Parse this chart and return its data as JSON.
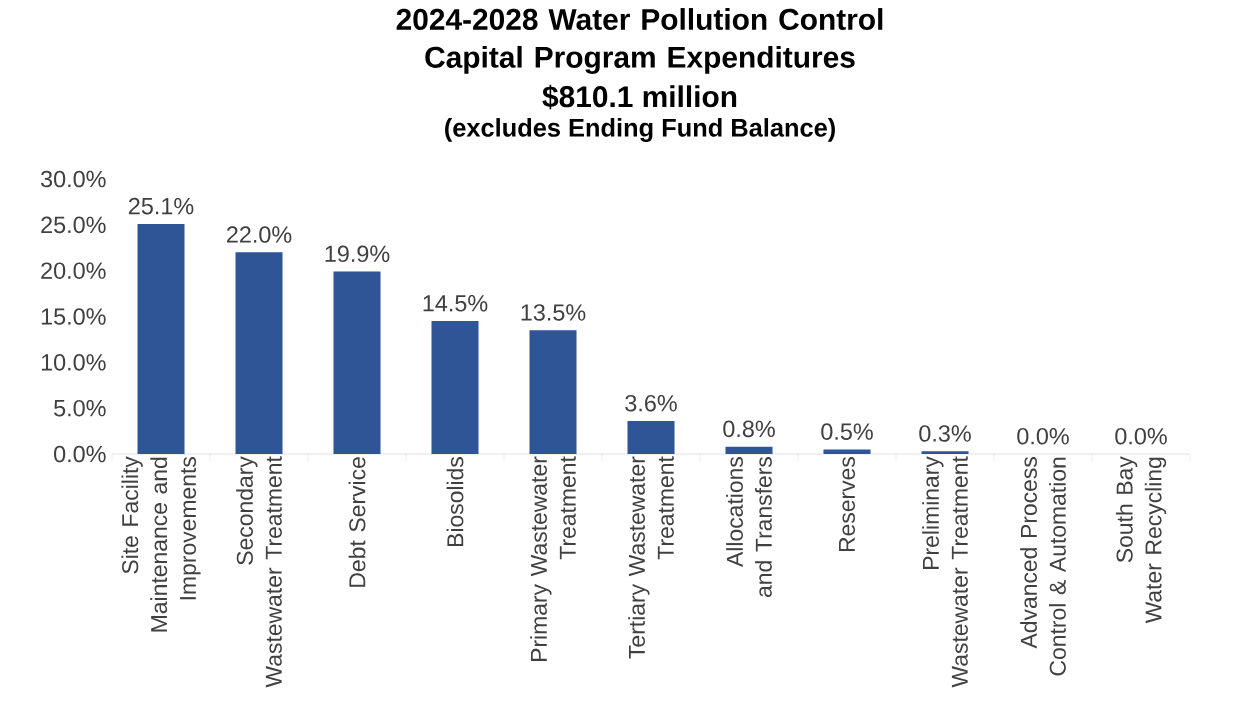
{
  "chart_data": {
    "type": "bar",
    "title": "2024-2028 Water Pollution Control Capital Program Expenditures",
    "subtitle": "$810.1 million",
    "annotations": [
      "(excludes Ending Fund Balance)"
    ],
    "categories": [
      "Site Facility Maintenance and Improvements",
      "Secondary Wastewater Treatment",
      "Debt Service",
      "Biosolids",
      "Primary Wastewater Treatment",
      "Tertiary Wastewater Treatment",
      "Allocations and Transfers",
      "Reserves",
      "Preliminary Wastewater Treatment",
      "Advanced Process Control & Automation",
      "South Bay Water Recycling"
    ],
    "values": [
      25.1,
      22.0,
      19.9,
      14.5,
      13.5,
      3.6,
      0.8,
      0.5,
      0.3,
      0.0,
      0.0
    ],
    "value_labels": [
      "25.1%",
      "22.0%",
      "19.9%",
      "14.5%",
      "13.5%",
      "3.6%",
      "0.8%",
      "0.5%",
      "0.3%",
      "0.0%",
      "0.0%"
    ],
    "color": "#2f5597",
    "ylim": [
      0,
      30
    ],
    "yticks": [
      {
        "value": 0,
        "label": "0.0%"
      },
      {
        "value": 5,
        "label": "5.0%"
      },
      {
        "value": 10,
        "label": "10.0%"
      },
      {
        "value": 15,
        "label": "15.0%"
      },
      {
        "value": 20,
        "label": "20.0%"
      },
      {
        "value": 25,
        "label": "25.0%"
      },
      {
        "value": 30,
        "label": "30.0%"
      }
    ],
    "grid": false,
    "legend": false
  }
}
